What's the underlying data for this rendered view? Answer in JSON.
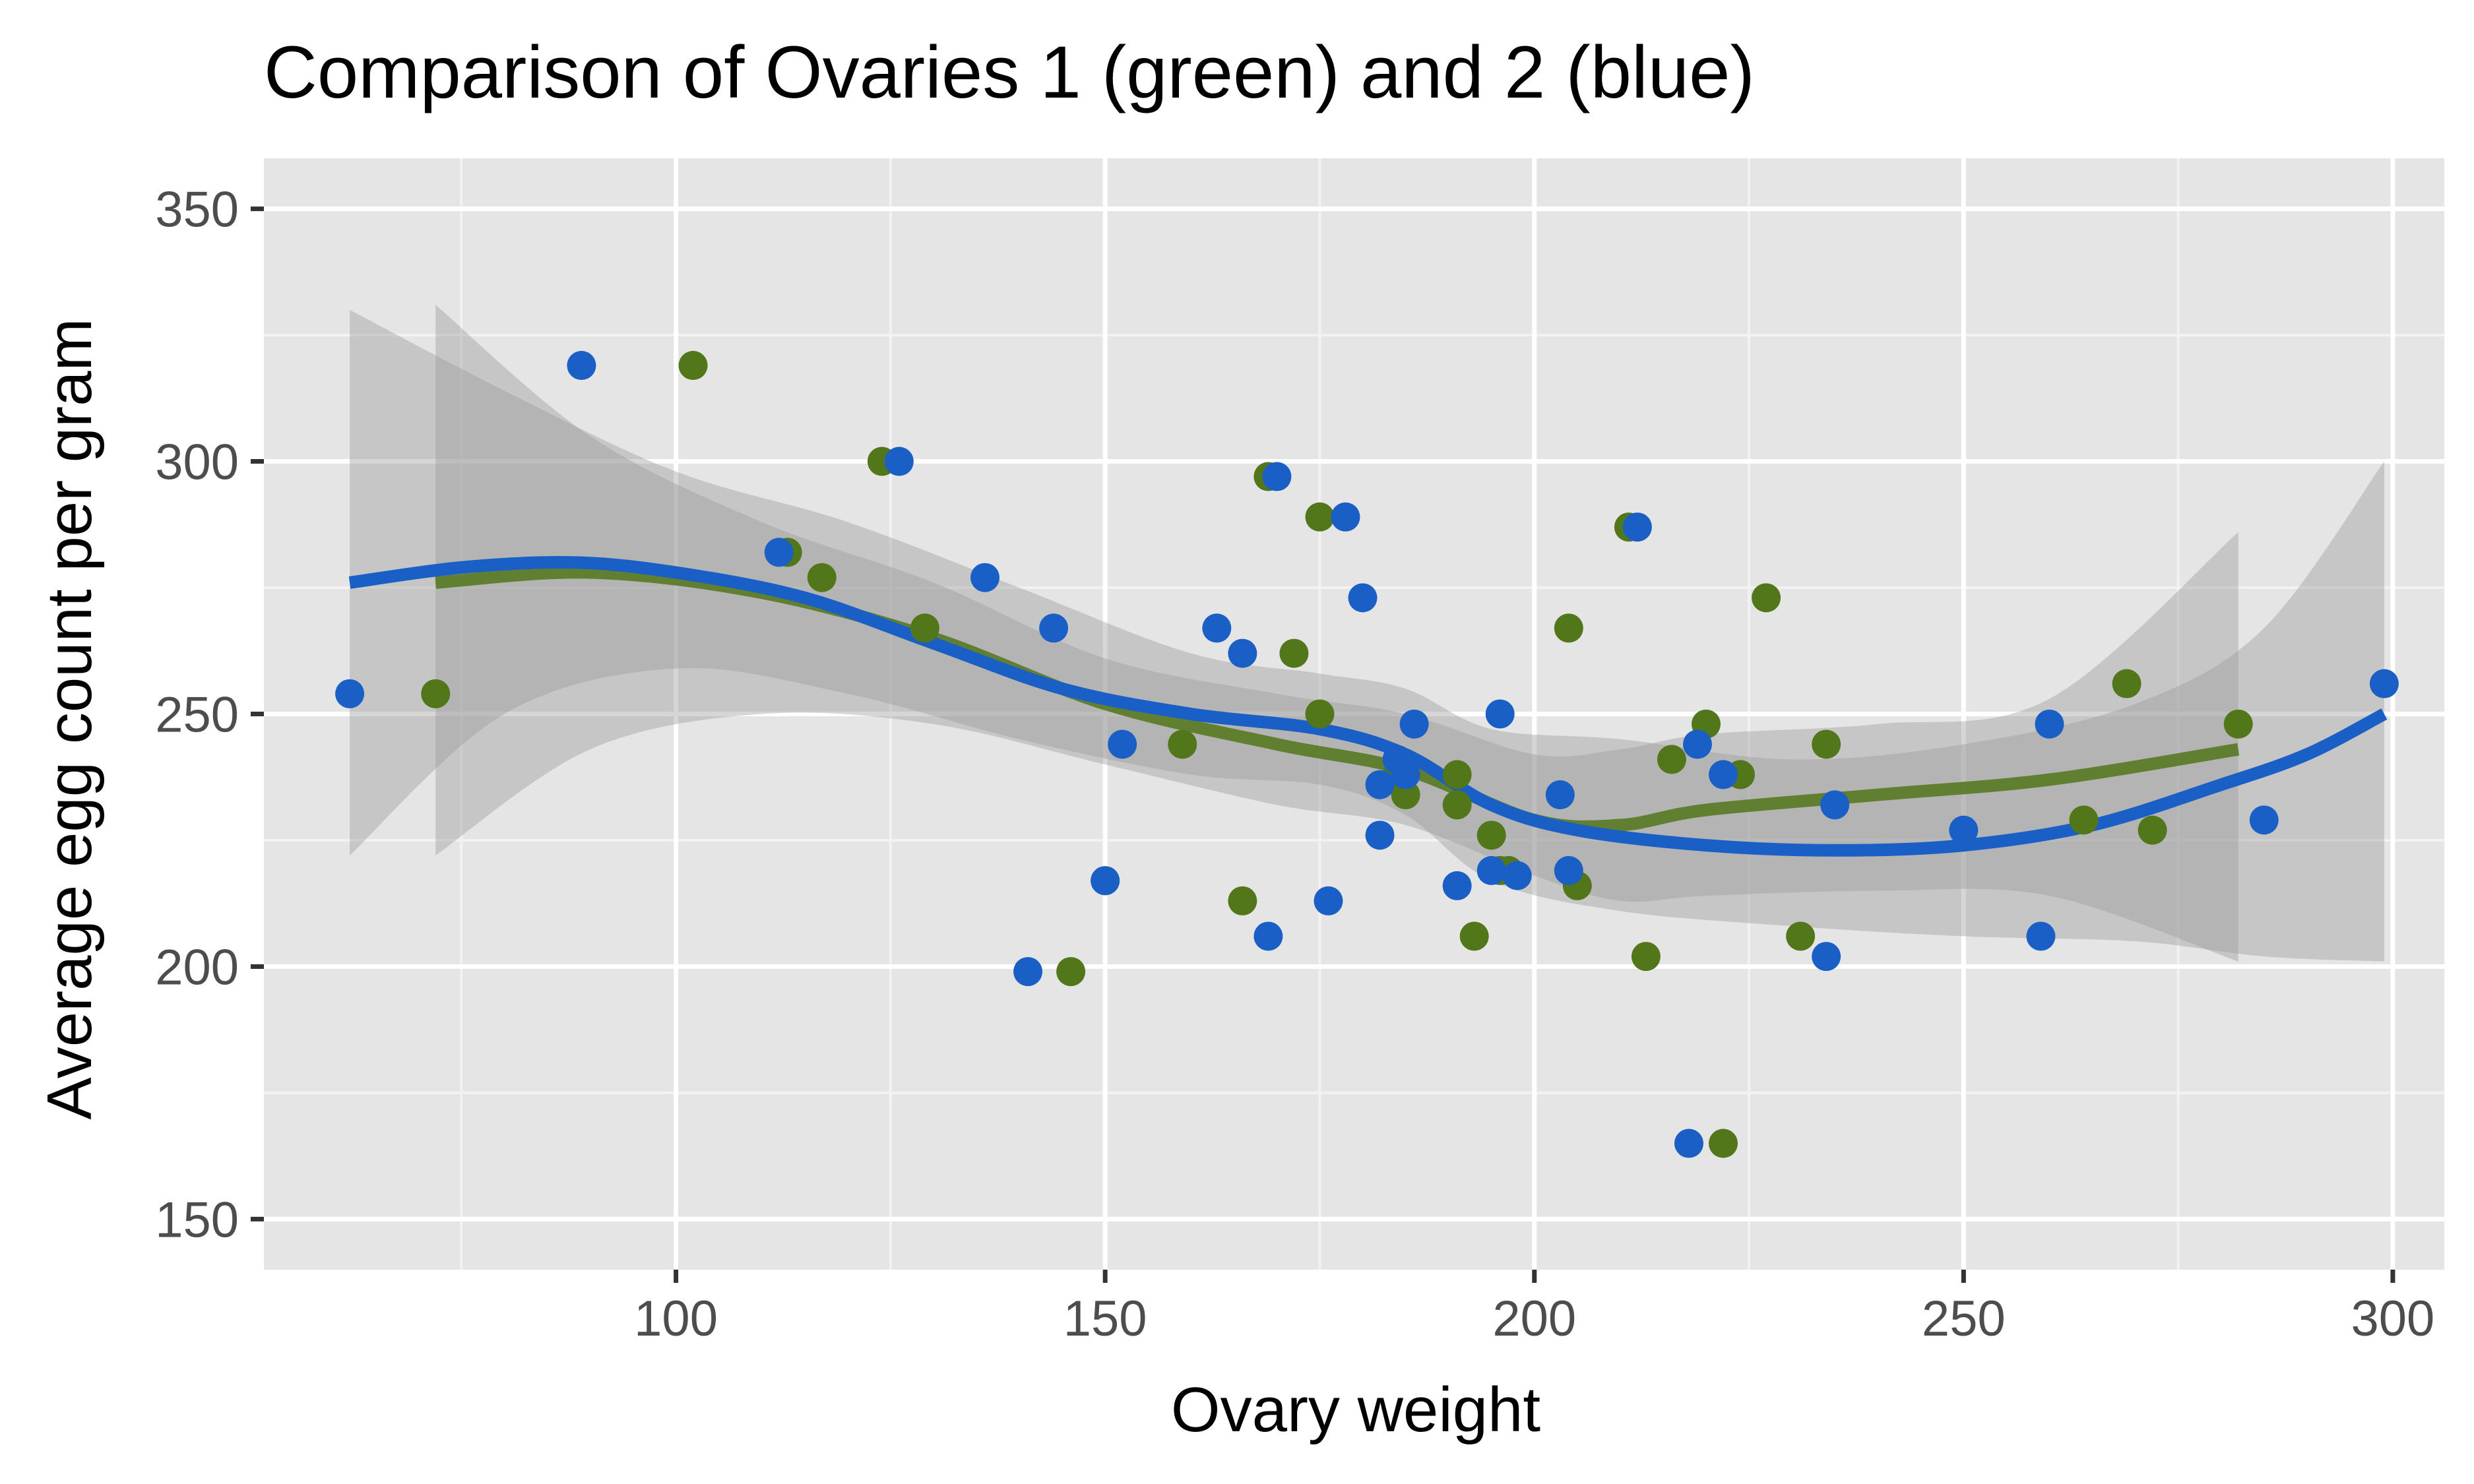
{
  "chart_data": {
    "type": "scatter",
    "title": "Comparison of Ovaries 1 (green) and 2 (blue)",
    "xlabel": "Ovary weight",
    "ylabel": "Average egg count per gram",
    "xlim": [
      52,
      306
    ],
    "ylim": [
      140,
      360
    ],
    "x_ticks": [
      100,
      150,
      200,
      250,
      300
    ],
    "y_ticks": [
      150,
      200,
      250,
      300,
      350
    ],
    "x_tick_labels": [
      "100",
      "150",
      "200",
      "250",
      "300"
    ],
    "y_tick_labels": [
      "150",
      "200",
      "250",
      "300",
      "350"
    ],
    "grid": true,
    "legend": "none",
    "colors": {
      "panel_background": "#e5e5e5",
      "grid_major": "#ffffff",
      "grid_minor": "#f2f2f2",
      "ovary1": "#52761a",
      "ovary2": "#1a5fc6",
      "ribbon": "#999999",
      "tick_mark": "#333333",
      "tick_text": "#4d4d4d"
    },
    "series": [
      {
        "key": "ovary1",
        "points": [
          [
            72,
            254
          ],
          [
            102,
            319
          ],
          [
            113,
            282
          ],
          [
            117,
            277
          ],
          [
            124,
            300
          ],
          [
            129,
            267
          ],
          [
            146,
            199
          ],
          [
            150,
            217
          ],
          [
            159,
            244
          ],
          [
            166,
            213
          ],
          [
            169,
            297
          ],
          [
            172,
            262
          ],
          [
            175,
            289
          ],
          [
            175,
            250
          ],
          [
            184,
            238
          ],
          [
            185,
            234
          ],
          [
            191,
            238
          ],
          [
            191,
            232
          ],
          [
            193,
            206
          ],
          [
            195,
            226
          ],
          [
            196,
            219
          ],
          [
            197,
            219
          ],
          [
            204,
            267
          ],
          [
            205,
            216
          ],
          [
            211,
            287
          ],
          [
            213,
            202
          ],
          [
            216,
            241
          ],
          [
            220,
            248
          ],
          [
            222,
            165
          ],
          [
            224,
            238
          ],
          [
            227,
            273
          ],
          [
            231,
            206
          ],
          [
            234,
            244
          ],
          [
            264,
            229
          ],
          [
            269,
            256
          ],
          [
            272,
            227
          ],
          [
            282,
            248
          ]
        ],
        "smooth": [
          [
            72,
            276
          ],
          [
            90,
            278
          ],
          [
            110,
            274
          ],
          [
            130,
            265
          ],
          [
            150,
            252
          ],
          [
            170,
            244
          ],
          [
            185,
            239
          ],
          [
            200,
            229
          ],
          [
            210,
            228
          ],
          [
            220,
            231
          ],
          [
            240,
            234
          ],
          [
            260,
            237
          ],
          [
            282,
            243
          ]
        ],
        "ribbon_upper": [
          [
            72,
            331
          ],
          [
            90,
            305
          ],
          [
            110,
            288
          ],
          [
            130,
            276
          ],
          [
            150,
            261
          ],
          [
            170,
            254
          ],
          [
            185,
            250
          ],
          [
            200,
            242
          ],
          [
            210,
            243
          ],
          [
            220,
            246
          ],
          [
            240,
            248
          ],
          [
            260,
            253
          ],
          [
            282,
            286
          ]
        ],
        "ribbon_lower": [
          [
            72,
            222
          ],
          [
            90,
            243
          ],
          [
            110,
            250
          ],
          [
            130,
            248
          ],
          [
            150,
            240
          ],
          [
            170,
            232
          ],
          [
            185,
            228
          ],
          [
            200,
            218
          ],
          [
            210,
            213
          ],
          [
            220,
            214
          ],
          [
            240,
            215
          ],
          [
            260,
            214
          ],
          [
            282,
            201
          ]
        ]
      },
      {
        "key": "ovary2",
        "points": [
          [
            62,
            254
          ],
          [
            89,
            319
          ],
          [
            112,
            282
          ],
          [
            126,
            300
          ],
          [
            136,
            277
          ],
          [
            141,
            199
          ],
          [
            144,
            267
          ],
          [
            150,
            217
          ],
          [
            152,
            244
          ],
          [
            163,
            267
          ],
          [
            166,
            262
          ],
          [
            169,
            206
          ],
          [
            170,
            297
          ],
          [
            176,
            213
          ],
          [
            178,
            289
          ],
          [
            180,
            273
          ],
          [
            182,
            236
          ],
          [
            182,
            226
          ],
          [
            184,
            241
          ],
          [
            185,
            238
          ],
          [
            186,
            248
          ],
          [
            191,
            216
          ],
          [
            195,
            219
          ],
          [
            196,
            250
          ],
          [
            198,
            218
          ],
          [
            203,
            234
          ],
          [
            204,
            219
          ],
          [
            212,
            287
          ],
          [
            218,
            165
          ],
          [
            219,
            244
          ],
          [
            222,
            238
          ],
          [
            234,
            202
          ],
          [
            235,
            232
          ],
          [
            250,
            227
          ],
          [
            259,
            206
          ],
          [
            260,
            248
          ],
          [
            285,
            229
          ],
          [
            299,
            256
          ]
        ],
        "smooth": [
          [
            62,
            276
          ],
          [
            75,
            279
          ],
          [
            88,
            280
          ],
          [
            100,
            278
          ],
          [
            115,
            273
          ],
          [
            130,
            264
          ],
          [
            145,
            255
          ],
          [
            160,
            250
          ],
          [
            175,
            247
          ],
          [
            185,
            242
          ],
          [
            195,
            232
          ],
          [
            205,
            227
          ],
          [
            220,
            224
          ],
          [
            235,
            223
          ],
          [
            250,
            224
          ],
          [
            265,
            228
          ],
          [
            280,
            236
          ],
          [
            290,
            242
          ],
          [
            299,
            250
          ]
        ],
        "ribbon_upper": [
          [
            62,
            330
          ],
          [
            80,
            314
          ],
          [
            100,
            298
          ],
          [
            120,
            288
          ],
          [
            140,
            275
          ],
          [
            160,
            262
          ],
          [
            175,
            258
          ],
          [
            185,
            255
          ],
          [
            195,
            247
          ],
          [
            210,
            245
          ],
          [
            230,
            241
          ],
          [
            250,
            244
          ],
          [
            270,
            252
          ],
          [
            285,
            267
          ],
          [
            299,
            300
          ]
        ],
        "ribbon_lower": [
          [
            62,
            222
          ],
          [
            80,
            250
          ],
          [
            100,
            259
          ],
          [
            120,
            254
          ],
          [
            140,
            245
          ],
          [
            160,
            238
          ],
          [
            175,
            236
          ],
          [
            185,
            230
          ],
          [
            195,
            217
          ],
          [
            210,
            211
          ],
          [
            230,
            208
          ],
          [
            250,
            206
          ],
          [
            270,
            205
          ],
          [
            285,
            202
          ],
          [
            299,
            201
          ]
        ]
      }
    ]
  }
}
